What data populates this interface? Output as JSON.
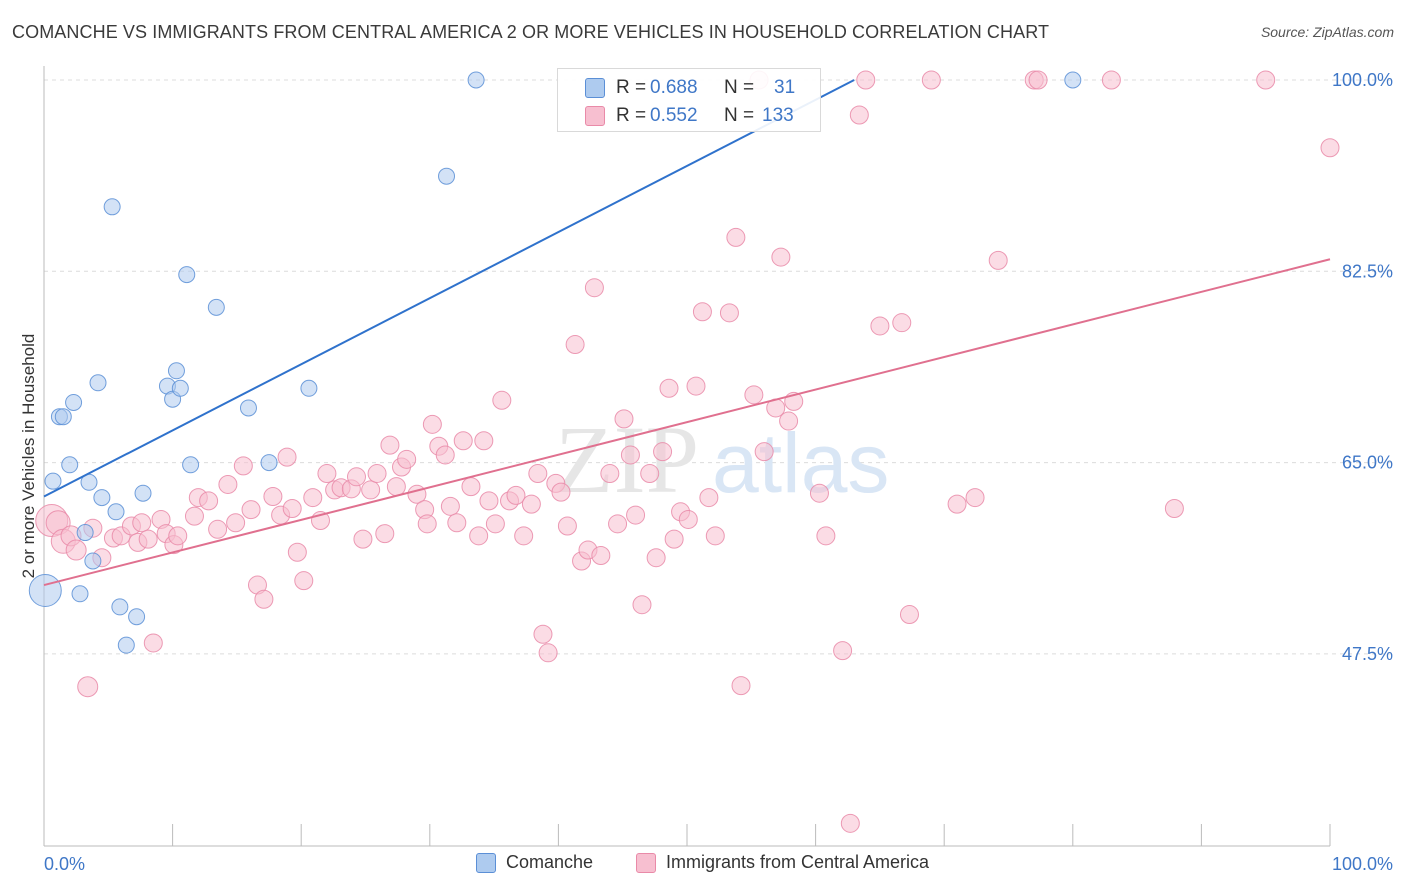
{
  "title": "COMANCHE VS IMMIGRANTS FROM CENTRAL AMERICA 2 OR MORE VEHICLES IN HOUSEHOLD CORRELATION CHART",
  "source": "Source: ZipAtlas.com",
  "watermark": {
    "zip": "ZIP",
    "atlas": "atlas"
  },
  "colors": {
    "blue_fill": "#aecbef",
    "blue_stroke": "#5b8fd6",
    "blue_line": "#2f72cc",
    "pink_fill": "#f7bfd0",
    "pink_stroke": "#e98aa8",
    "pink_line": "#e0708f",
    "axis_text": "#3f77c7",
    "grid": "#dcdcdc"
  },
  "legend_stats": [
    {
      "r_label": "R =",
      "r_value": "0.688",
      "n_label": "N =",
      "n_value": "31",
      "series": "Comanche"
    },
    {
      "r_label": "R =",
      "r_value": "0.552",
      "n_label": "N =",
      "n_value": "133",
      "series": "Immigrants from Central America"
    }
  ],
  "chart_data": {
    "type": "scatter",
    "title": "COMANCHE VS IMMIGRANTS FROM CENTRAL AMERICA 2 OR MORE VEHICLES IN HOUSEHOLD CORRELATION CHART",
    "xlabel": "",
    "ylabel": "2 or more Vehicles in Household",
    "xlim": [
      0,
      100
    ],
    "ylim": [
      30,
      101.5
    ],
    "x_tick_labels": [
      "0.0%",
      "100.0%"
    ],
    "y_ticks": [
      47.5,
      65.0,
      82.5,
      100.0
    ],
    "y_tick_labels": [
      "47.5%",
      "65.0%",
      "82.5%",
      "100.0%"
    ],
    "grid": true,
    "legend_position": "bottom",
    "series": [
      {
        "name": "Comanche",
        "color": "#aecbef",
        "trend": {
          "x": [
            0,
            63
          ],
          "y": [
            61.9,
            100.0
          ]
        },
        "points": [
          [
            0.1,
            53.3,
            16
          ],
          [
            0.7,
            63.3,
            8
          ],
          [
            1.2,
            69.2,
            8
          ],
          [
            1.5,
            69.2,
            8
          ],
          [
            2.0,
            64.8,
            8
          ],
          [
            2.3,
            70.5,
            8
          ],
          [
            2.8,
            53.0,
            8
          ],
          [
            3.2,
            58.6,
            8
          ],
          [
            3.5,
            63.2,
            8
          ],
          [
            3.8,
            56.0,
            8
          ],
          [
            4.2,
            72.3,
            8
          ],
          [
            4.5,
            61.8,
            8
          ],
          [
            5.3,
            88.4,
            8
          ],
          [
            5.6,
            60.5,
            8
          ],
          [
            5.9,
            51.8,
            8
          ],
          [
            6.4,
            48.3,
            8
          ],
          [
            7.2,
            50.9,
            8
          ],
          [
            7.7,
            62.2,
            8
          ],
          [
            9.6,
            72.0,
            8
          ],
          [
            10.0,
            70.8,
            8
          ],
          [
            10.3,
            73.4,
            8
          ],
          [
            10.6,
            71.8,
            8
          ],
          [
            11.1,
            82.2,
            8
          ],
          [
            11.4,
            64.8,
            8
          ],
          [
            13.4,
            79.2,
            8
          ],
          [
            15.9,
            70.0,
            8
          ],
          [
            17.5,
            65.0,
            8
          ],
          [
            20.6,
            71.8,
            8
          ],
          [
            31.3,
            91.2,
            8
          ],
          [
            33.6,
            100.0,
            8
          ],
          [
            80.0,
            100.0,
            8
          ]
        ]
      },
      {
        "name": "Immigrants from Central America",
        "color": "#f7bfd0",
        "trend": {
          "x": [
            0,
            100
          ],
          "y": [
            53.8,
            83.6
          ]
        },
        "points": [
          [
            0.6,
            59.7,
            16
          ],
          [
            1.1,
            59.5,
            12
          ],
          [
            1.5,
            57.8,
            12
          ],
          [
            2.1,
            58.3,
            10
          ],
          [
            2.5,
            57.0,
            10
          ],
          [
            3.4,
            44.5,
            10
          ],
          [
            3.8,
            59.0,
            9
          ],
          [
            4.5,
            56.3,
            9
          ],
          [
            5.4,
            58.1,
            9
          ],
          [
            6.0,
            58.3,
            9
          ],
          [
            6.8,
            59.2,
            9
          ],
          [
            7.3,
            57.7,
            9
          ],
          [
            7.6,
            59.5,
            9
          ],
          [
            8.1,
            58.0,
            9
          ],
          [
            8.5,
            48.5,
            9
          ],
          [
            9.1,
            59.8,
            9
          ],
          [
            9.5,
            58.5,
            9
          ],
          [
            10.1,
            57.5,
            9
          ],
          [
            10.4,
            58.3,
            9
          ],
          [
            11.7,
            60.1,
            9
          ],
          [
            12.0,
            61.8,
            9
          ],
          [
            12.8,
            61.5,
            9
          ],
          [
            13.5,
            58.9,
            9
          ],
          [
            14.3,
            63.0,
            9
          ],
          [
            14.9,
            59.5,
            9
          ],
          [
            15.5,
            64.7,
            9
          ],
          [
            16.1,
            60.7,
            9
          ],
          [
            16.6,
            53.8,
            9
          ],
          [
            17.1,
            52.5,
            9
          ],
          [
            17.8,
            61.9,
            9
          ],
          [
            18.4,
            60.2,
            9
          ],
          [
            18.9,
            65.5,
            9
          ],
          [
            19.3,
            60.8,
            9
          ],
          [
            19.7,
            56.8,
            9
          ],
          [
            20.2,
            54.2,
            9
          ],
          [
            20.9,
            61.8,
            9
          ],
          [
            21.5,
            59.7,
            9
          ],
          [
            22.0,
            64.0,
            9
          ],
          [
            22.6,
            62.5,
            9
          ],
          [
            23.1,
            62.7,
            9
          ],
          [
            23.9,
            62.6,
            9
          ],
          [
            24.3,
            63.7,
            9
          ],
          [
            24.8,
            58.0,
            9
          ],
          [
            25.4,
            62.5,
            9
          ],
          [
            25.9,
            64.0,
            9
          ],
          [
            26.5,
            58.5,
            9
          ],
          [
            26.9,
            66.6,
            9
          ],
          [
            27.4,
            62.8,
            9
          ],
          [
            27.8,
            64.6,
            9
          ],
          [
            28.2,
            65.3,
            9
          ],
          [
            29.0,
            62.1,
            9
          ],
          [
            29.6,
            60.7,
            9
          ],
          [
            29.8,
            59.4,
            9
          ],
          [
            30.2,
            68.5,
            9
          ],
          [
            30.7,
            66.5,
            9
          ],
          [
            31.2,
            65.7,
            9
          ],
          [
            31.6,
            61.0,
            9
          ],
          [
            32.1,
            59.5,
            9
          ],
          [
            32.6,
            67.0,
            9
          ],
          [
            33.2,
            62.8,
            9
          ],
          [
            33.8,
            58.3,
            9
          ],
          [
            34.2,
            67.0,
            9
          ],
          [
            34.6,
            61.5,
            9
          ],
          [
            35.1,
            59.4,
            9
          ],
          [
            35.6,
            70.7,
            9
          ],
          [
            36.2,
            61.5,
            9
          ],
          [
            36.7,
            62.0,
            9
          ],
          [
            37.3,
            58.3,
            9
          ],
          [
            37.9,
            61.2,
            9
          ],
          [
            38.4,
            64.0,
            9
          ],
          [
            38.8,
            49.3,
            9
          ],
          [
            39.2,
            47.6,
            9
          ],
          [
            39.8,
            63.1,
            9
          ],
          [
            40.2,
            62.3,
            9
          ],
          [
            40.7,
            59.2,
            9
          ],
          [
            41.3,
            75.8,
            9
          ],
          [
            41.8,
            56.0,
            9
          ],
          [
            42.3,
            57.0,
            9
          ],
          [
            42.8,
            81.0,
            9
          ],
          [
            43.3,
            56.5,
            9
          ],
          [
            44.0,
            64.0,
            9
          ],
          [
            44.6,
            59.4,
            9
          ],
          [
            45.1,
            69.0,
            9
          ],
          [
            45.6,
            65.7,
            9
          ],
          [
            46.0,
            60.2,
            9
          ],
          [
            46.5,
            52.0,
            9
          ],
          [
            47.1,
            64.0,
            9
          ],
          [
            47.6,
            56.3,
            9
          ],
          [
            48.1,
            66.0,
            9
          ],
          [
            48.6,
            71.8,
            9
          ],
          [
            49.0,
            58.0,
            9
          ],
          [
            49.5,
            60.5,
            9
          ],
          [
            50.1,
            59.8,
            9
          ],
          [
            50.7,
            72.0,
            9
          ],
          [
            51.2,
            78.8,
            9
          ],
          [
            51.7,
            61.8,
            9
          ],
          [
            52.2,
            58.3,
            9
          ],
          [
            53.3,
            78.7,
            9
          ],
          [
            53.8,
            85.6,
            9
          ],
          [
            54.2,
            44.6,
            9
          ],
          [
            55.2,
            71.2,
            9
          ],
          [
            55.6,
            100.0,
            9
          ],
          [
            56.0,
            66.0,
            9
          ],
          [
            56.9,
            70.0,
            9
          ],
          [
            57.3,
            83.8,
            9
          ],
          [
            57.9,
            68.8,
            9
          ],
          [
            58.3,
            70.6,
            9
          ],
          [
            60.3,
            62.2,
            9
          ],
          [
            60.8,
            58.3,
            9
          ],
          [
            62.1,
            47.8,
            9
          ],
          [
            62.7,
            32.0,
            9
          ],
          [
            63.4,
            96.8,
            9
          ],
          [
            63.9,
            100.0,
            9
          ],
          [
            65.0,
            77.5,
            9
          ],
          [
            66.7,
            77.8,
            9
          ],
          [
            67.3,
            51.1,
            9
          ],
          [
            69.0,
            100.0,
            9
          ],
          [
            71.0,
            61.2,
            9
          ],
          [
            72.4,
            61.8,
            9
          ],
          [
            74.2,
            83.5,
            9
          ],
          [
            77.0,
            100.0,
            9
          ],
          [
            77.3,
            100.0,
            9
          ],
          [
            83.0,
            100.0,
            9
          ],
          [
            87.9,
            60.8,
            9
          ],
          [
            95.0,
            100.0,
            9
          ],
          [
            100.0,
            93.8,
            9
          ]
        ]
      }
    ]
  },
  "bottom_legend": [
    "Comanche",
    "Immigrants from Central America"
  ]
}
